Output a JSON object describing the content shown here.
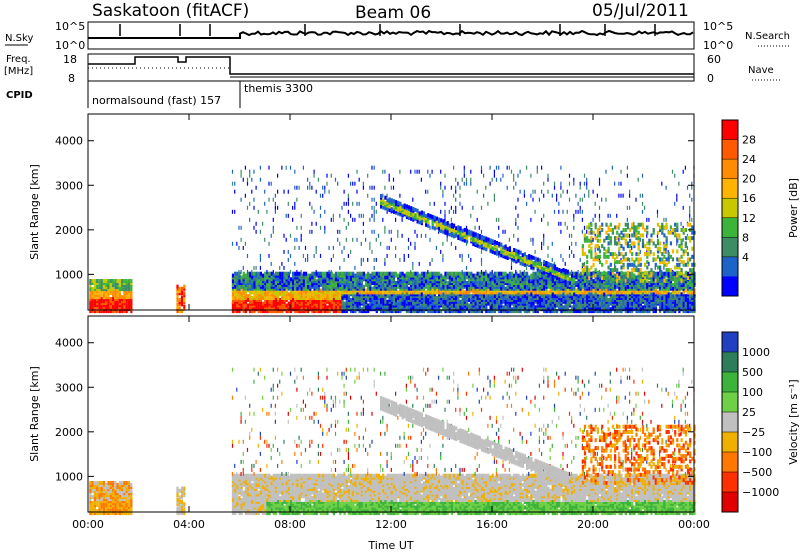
{
  "header": {
    "station": "Saskatoon (fitACF)",
    "beam": "Beam 06",
    "date": "05/Jul/2011"
  },
  "strips": {
    "nsky_label": "N.Sky",
    "nsky_ticks": [
      "10^5",
      "10^0"
    ],
    "nsearch_label": "N.Search",
    "nsearch_ticks": [
      "10^5",
      "10^0"
    ],
    "freq_label_1": "Freq.",
    "freq_label_2": "[MHz]",
    "freq_ticks": [
      "18",
      "8"
    ],
    "nave_label": "Nave",
    "nave_ticks": [
      "60",
      "0"
    ],
    "cpid_label": "CPID",
    "cpid_1": "normalsound (fast) 157",
    "cpid_2": "themis 3300"
  },
  "chart_data": [
    {
      "type": "heatmap",
      "panel": "power",
      "ylabel": "Slant Range [km]",
      "xlabel": "",
      "yticks": [
        1000,
        2000,
        3000,
        4000
      ],
      "ylim": [
        200,
        4600
      ],
      "xlim_hours": [
        0,
        24
      ],
      "colorbar": {
        "label": "Power [dB]",
        "ticks": [
          "28",
          "24",
          "20",
          "16",
          "12",
          "8",
          "4"
        ],
        "colors": [
          "#ff0000",
          "#ff5a00",
          "#ff8c00",
          "#ffb400",
          "#c8c800",
          "#3cb43c",
          "#3c8c64",
          "#1e64c8",
          "#0000ff"
        ]
      }
    },
    {
      "type": "heatmap",
      "panel": "velocity",
      "ylabel": "Slant Range [km]",
      "xlabel": "Time UT",
      "yticks": [
        1000,
        2000,
        3000,
        4000
      ],
      "ylim": [
        200,
        4600
      ],
      "xlim_hours": [
        0,
        24
      ],
      "xticks": [
        "00:00",
        "04:00",
        "08:00",
        "12:00",
        "16:00",
        "20:00",
        "00:00"
      ],
      "colorbar": {
        "label": "Velocity [m s⁻¹]",
        "ticks": [
          "1000",
          "500",
          "100",
          "25",
          "−25",
          "−100",
          "−500",
          "−1000"
        ],
        "colors": [
          "#2040c0",
          "#2e7d5a",
          "#3cb43c",
          "#6ed046",
          "#c0c0c0",
          "#f0b000",
          "#ff7800",
          "#ff3000",
          "#e00000"
        ]
      }
    }
  ]
}
